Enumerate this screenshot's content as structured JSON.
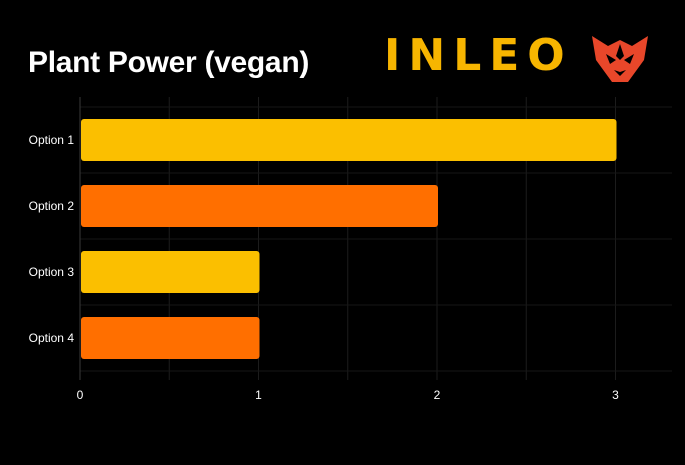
{
  "chart_data": {
    "type": "bar",
    "orientation": "horizontal",
    "title": "Plant Power (vegan)",
    "categories": [
      "Option 1",
      "Option 2",
      "Option 3",
      "Option 4"
    ],
    "values": [
      3,
      2,
      1,
      1
    ],
    "bar_colors": [
      "#fbbf00",
      "#ff6f00",
      "#fbbf00",
      "#ff6f00"
    ],
    "xlim": [
      0,
      3.3
    ],
    "xticks": [
      0,
      1,
      2,
      3
    ],
    "grid": true,
    "background": "#000000"
  },
  "brand": {
    "logo_text": "INLEO",
    "logo_color": "#f7b500",
    "mark_color": "#e8472a",
    "mark_icon": "lion-head-icon"
  }
}
